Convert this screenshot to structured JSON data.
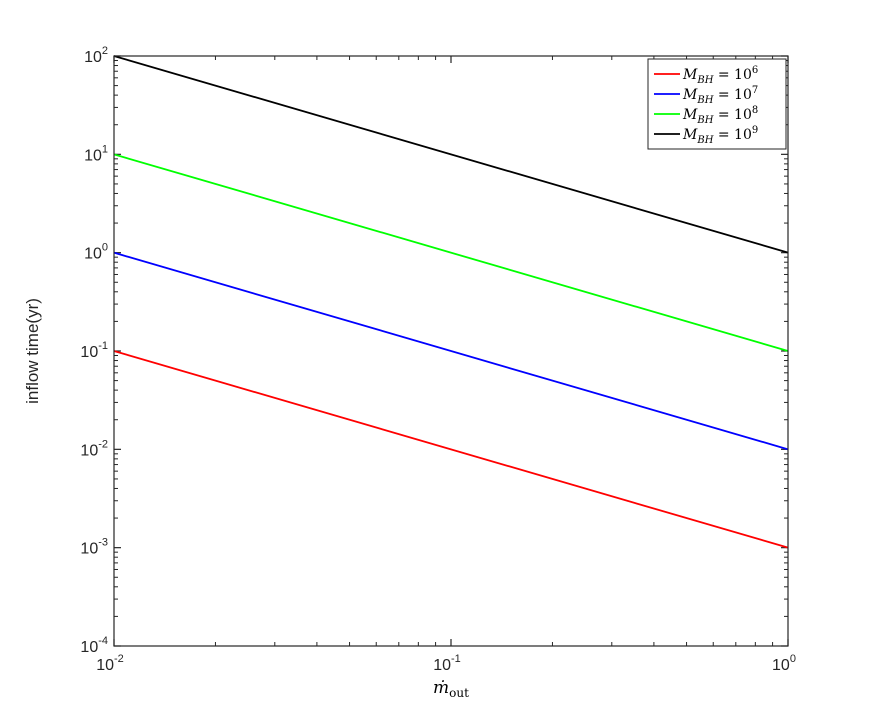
{
  "chart_data": {
    "type": "line",
    "title": "",
    "xlabel": {
      "base": "ṁ",
      "sub": "out"
    },
    "ylabel": "inflow time(yr)",
    "xscale": "log",
    "yscale": "log",
    "xlim": [
      0.01,
      1
    ],
    "ylim": [
      0.0001,
      100
    ],
    "x_ticks": [
      {
        "base": "10",
        "exp": "-2",
        "value": 0.01
      },
      {
        "base": "10",
        "exp": "-1",
        "value": 0.1
      },
      {
        "base": "10",
        "exp": "0",
        "value": 1
      }
    ],
    "y_ticks": [
      {
        "base": "10",
        "exp": "-4",
        "value": 0.0001
      },
      {
        "base": "10",
        "exp": "-3",
        "value": 0.001
      },
      {
        "base": "10",
        "exp": "-2",
        "value": 0.01
      },
      {
        "base": "10",
        "exp": "-1",
        "value": 0.1
      },
      {
        "base": "10",
        "exp": "0",
        "value": 1
      },
      {
        "base": "10",
        "exp": "1",
        "value": 10
      },
      {
        "base": "10",
        "exp": "2",
        "value": 100
      }
    ],
    "grid": false,
    "legend_position": "top-right",
    "series": [
      {
        "name": "M_BH = 10^6",
        "label_var": "M",
        "label_sub": "BH",
        "label_eq": " = 10",
        "label_exp": "6",
        "color": "#ff0000",
        "x": [
          0.01,
          1
        ],
        "y": [
          0.1,
          0.001
        ]
      },
      {
        "name": "M_BH = 10^7",
        "label_var": "M",
        "label_sub": "BH",
        "label_eq": " = 10",
        "label_exp": "7",
        "color": "#0000ff",
        "x": [
          0.01,
          1
        ],
        "y": [
          1,
          0.01
        ]
      },
      {
        "name": "M_BH = 10^8",
        "label_var": "M",
        "label_sub": "BH",
        "label_eq": " = 10",
        "label_exp": "8",
        "color": "#00ff00",
        "x": [
          0.01,
          1
        ],
        "y": [
          10,
          0.1
        ]
      },
      {
        "name": "M_BH = 10^9",
        "label_var": "M",
        "label_sub": "BH",
        "label_eq": " = 10",
        "label_exp": "9",
        "color": "#000000",
        "x": [
          0.01,
          1
        ],
        "y": [
          100,
          1
        ]
      }
    ]
  }
}
